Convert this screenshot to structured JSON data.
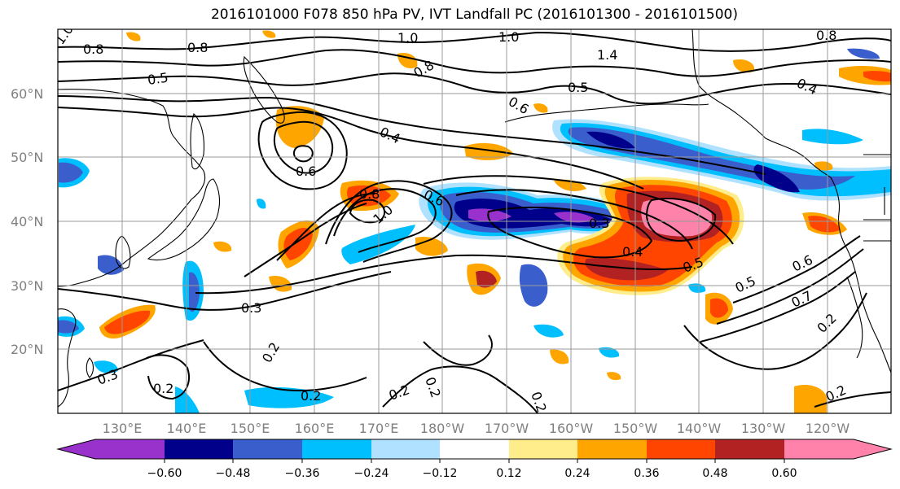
{
  "title": "2016101000 F078 850 hPa PV, IVT Landfall PC (2016101300 - 2016101500)",
  "lat_labels": [
    "20°N",
    "30°N",
    "40°N",
    "50°N",
    "60°N"
  ],
  "lon_labels": [
    "130°E",
    "140°E",
    "150°E",
    "160°E",
    "170°E",
    "180°W",
    "170°W",
    "160°W",
    "150°W",
    "140°W",
    "130°W",
    "120°W"
  ],
  "colorbar": {
    "ticks": [
      "−0.60",
      "−0.48",
      "−0.36",
      "−0.24",
      "−0.12",
      "0.12",
      "0.24",
      "0.36",
      "0.48",
      "0.60"
    ],
    "colors": [
      "#9932cc",
      "#00008b",
      "#3a5fcd",
      "#00bfff",
      "#b0e2ff",
      "#ffffff",
      "#ffec8b",
      "#ffa500",
      "#ff4500",
      "#b22222",
      "#ff82ab"
    ]
  },
  "contour_labels": [
    {
      "text": "1.0"
    },
    {
      "text": "0.8"
    },
    {
      "text": "0.8"
    },
    {
      "text": "1.0"
    },
    {
      "text": "1.0"
    },
    {
      "text": "0.8"
    },
    {
      "text": "0.5"
    },
    {
      "text": "1.4"
    },
    {
      "text": "0.8"
    },
    {
      "text": "0.6"
    },
    {
      "text": "0.5"
    },
    {
      "text": "0.4"
    },
    {
      "text": "0.4"
    },
    {
      "text": "0.6"
    },
    {
      "text": "0.8"
    },
    {
      "text": "0.6"
    },
    {
      "text": "1.0"
    },
    {
      "text": "0.3"
    },
    {
      "text": "0.4"
    },
    {
      "text": "0.5"
    },
    {
      "text": "0.3"
    },
    {
      "text": "0.6"
    },
    {
      "text": "0.5"
    },
    {
      "text": "0.7"
    },
    {
      "text": "0.2"
    },
    {
      "text": "0.2"
    },
    {
      "text": "0.3"
    },
    {
      "text": "0.2"
    },
    {
      "text": "0.2"
    },
    {
      "text": "0.2"
    },
    {
      "text": "0.2"
    },
    {
      "text": "0.2"
    },
    {
      "text": "0.2"
    }
  ]
}
